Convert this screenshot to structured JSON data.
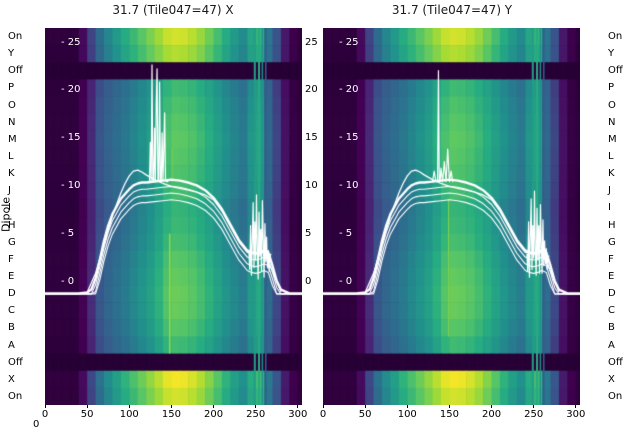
{
  "figure": {
    "background": "#ffffff",
    "ylabel": "Dipole",
    "corner_zero_label": "0"
  },
  "axes": {
    "dipole_labels": [
      "On",
      "Y",
      "Off",
      "P",
      "O",
      "N",
      "M",
      "L",
      "K",
      "J",
      "I",
      "H",
      "G",
      "F",
      "E",
      "D",
      "C",
      "B",
      "A",
      "Off",
      "X",
      "On"
    ],
    "inner_tick_labels": [
      "- 25",
      "- 20",
      "- 15",
      "- 10",
      "- 5",
      "- 0"
    ],
    "inner_tick_values": [
      25,
      20,
      15,
      10,
      5,
      0
    ],
    "gap_tick_labels": [
      "25",
      "20",
      "15",
      "10",
      "5",
      "0"
    ],
    "x_tick_labels": [
      "0",
      "50",
      "100",
      "150",
      "200",
      "250",
      "300"
    ],
    "x_tick_values": [
      0,
      50,
      100,
      150,
      200,
      250,
      300
    ],
    "x_range": [
      0,
      305
    ]
  },
  "style": {
    "overlay_color": "#ffffff",
    "title_color": "#1a1a1a",
    "tick_color": "#000000",
    "colormap": "viridis"
  },
  "chart_data": [
    {
      "type": "heatmap",
      "title": "31.7 (Tile047=47) X",
      "x_range": [
        0,
        305
      ],
      "row_labels": [
        "On",
        "Y",
        "Off",
        "P",
        "O",
        "N",
        "M",
        "L",
        "K",
        "J",
        "I",
        "H",
        "G",
        "F",
        "E",
        "D",
        "C",
        "B",
        "A",
        "Off",
        "X",
        "On"
      ],
      "row_kinds": [
        "band",
        "band",
        "off",
        "main",
        "main",
        "main",
        "main",
        "main",
        "main",
        "main",
        "main",
        "main",
        "main",
        "main",
        "main",
        "main",
        "main",
        "main",
        "main",
        "off",
        "band",
        "band"
      ],
      "row_gains": [
        1.0,
        0.95,
        1.0,
        0.93,
        0.97,
        1.0,
        1.02,
        1.0,
        0.98,
        0.95,
        0.9,
        0.92,
        0.95,
        1.0,
        1.03,
        1.05,
        1.04,
        1.0,
        0.93,
        1.0,
        1.05,
        1.0
      ],
      "column_step": 10,
      "profiles": {
        "main": [
          0.03,
          0.03,
          0.03,
          0.03,
          0.06,
          0.16,
          0.26,
          0.32,
          0.36,
          0.4,
          0.45,
          0.5,
          0.55,
          0.62,
          0.7,
          0.74,
          0.73,
          0.71,
          0.67,
          0.62,
          0.56,
          0.5,
          0.45,
          0.41,
          0.52,
          0.58,
          0.34,
          0.22,
          0.1,
          0.04,
          0.03
        ],
        "band": [
          0.03,
          0.03,
          0.03,
          0.03,
          0.08,
          0.22,
          0.36,
          0.46,
          0.54,
          0.62,
          0.68,
          0.74,
          0.8,
          0.86,
          0.92,
          0.94,
          0.93,
          0.9,
          0.85,
          0.78,
          0.7,
          0.62,
          0.54,
          0.48,
          0.6,
          0.66,
          0.4,
          0.26,
          0.12,
          0.05,
          0.03
        ],
        "off_value": 0.02
      },
      "vertical_lines": [
        {
          "x": 249,
          "v": 0.56,
          "w": 2
        },
        {
          "x": 254,
          "v": 0.62,
          "w": 2
        },
        {
          "x": 258,
          "v": 0.5,
          "w": 1.5
        },
        {
          "x": 262,
          "v": 0.3,
          "w": 1.5
        },
        {
          "x": 148,
          "v": 0.85,
          "w": 1.5,
          "rows": [
            12,
            19
          ]
        },
        {
          "x": 151,
          "v": 0.78,
          "w": 1.2,
          "rows": [
            7,
            9
          ]
        }
      ],
      "overlays": {
        "envelope": {
          "x": [
            0,
            10,
            20,
            30,
            40,
            50,
            55,
            60,
            65,
            70,
            75,
            80,
            90,
            100,
            105,
            110,
            115,
            120,
            130,
            140,
            150,
            160,
            170,
            180,
            190,
            200,
            210,
            220,
            230,
            240,
            245,
            250,
            255,
            260,
            265,
            270,
            275,
            280,
            290,
            300,
            305
          ],
          "y": [
            -1.3,
            -1.3,
            -1.3,
            -1.3,
            -1.3,
            -1.2,
            -0.9,
            0.3,
            2.2,
            4.2,
            5.8,
            7.0,
            8.6,
            9.6,
            10.0,
            10.2,
            10.3,
            10.3,
            10.4,
            10.5,
            10.6,
            10.5,
            10.3,
            10.0,
            9.5,
            8.7,
            7.5,
            5.9,
            4.3,
            3.2,
            3.0,
            2.9,
            3.0,
            3.2,
            3.0,
            1.6,
            0.0,
            -0.9,
            -1.3,
            -1.3,
            -1.3
          ]
        },
        "band_offsets": [
          0.7,
          1.4,
          2.1
        ],
        "hump": {
          "x": [
            50,
            60,
            70,
            80,
            90,
            95,
            100,
            105,
            110,
            115,
            120,
            130,
            140,
            150,
            160,
            170,
            180,
            190,
            200,
            210,
            220,
            230,
            240,
            250,
            260,
            270,
            280
          ],
          "y": [
            -1.2,
            0.8,
            3.8,
            6.8,
            9.2,
            10.2,
            11.0,
            11.5,
            11.6,
            11.4,
            11.1,
            10.6,
            10.2,
            9.9,
            9.7,
            9.5,
            9.3,
            9.0,
            8.5,
            7.3,
            5.7,
            4.1,
            3.0,
            2.8,
            3.0,
            1.0,
            -1.1
          ]
        },
        "spikes": {
          "x": [
            122,
            124,
            125,
            126,
            127,
            128,
            129,
            130,
            131,
            132,
            133,
            134,
            135,
            136,
            137,
            138,
            139,
            140,
            141,
            142,
            143,
            144,
            146
          ],
          "y": [
            10.3,
            10.3,
            14.5,
            10.4,
            22.6,
            10.4,
            10.4,
            16.0,
            10.4,
            18.5,
            22.2,
            10.5,
            10.4,
            20.8,
            10.5,
            10.4,
            15.5,
            10.4,
            13.8,
            17.6,
            10.6,
            10.4,
            10.4
          ]
        },
        "burst": {
          "x": [
            242,
            243,
            244,
            245,
            246,
            247,
            248,
            249,
            250,
            251,
            252,
            253,
            254,
            255,
            256,
            257,
            258,
            259,
            260,
            261,
            262,
            263,
            264,
            265,
            266,
            267,
            268
          ],
          "y": [
            3.0,
            1.2,
            5.8,
            0.6,
            4.2,
            8.2,
            1.4,
            6.2,
            2.2,
            9.0,
            3.4,
            0.2,
            7.2,
            2.6,
            5.4,
            1.0,
            8.4,
            4.2,
            0.4,
            6.0,
            2.0,
            4.6,
            1.4,
            3.2,
            1.0,
            2.6,
            2.8
          ]
        }
      }
    },
    {
      "type": "heatmap",
      "title": "31.7 (Tile047=47) Y",
      "x_range": [
        0,
        305
      ],
      "row_labels": [
        "On",
        "Y",
        "Off",
        "P",
        "O",
        "N",
        "M",
        "L",
        "K",
        "J",
        "I",
        "H",
        "G",
        "F",
        "E",
        "D",
        "C",
        "B",
        "A",
        "Off",
        "X",
        "On"
      ],
      "row_kinds": [
        "band",
        "band",
        "off",
        "main",
        "main",
        "main",
        "main",
        "main",
        "main",
        "main",
        "main",
        "main",
        "main",
        "main",
        "main",
        "main",
        "main",
        "main",
        "main",
        "off",
        "band",
        "band"
      ],
      "row_gains": [
        1.0,
        0.95,
        1.0,
        0.93,
        0.97,
        1.0,
        1.02,
        1.0,
        0.98,
        0.95,
        0.9,
        0.92,
        0.95,
        1.0,
        1.03,
        1.05,
        1.04,
        1.0,
        0.93,
        1.0,
        1.05,
        1.0
      ],
      "column_step": 10,
      "profiles": {
        "main": [
          0.03,
          0.03,
          0.03,
          0.03,
          0.06,
          0.16,
          0.26,
          0.32,
          0.36,
          0.4,
          0.45,
          0.5,
          0.55,
          0.62,
          0.7,
          0.74,
          0.73,
          0.71,
          0.67,
          0.62,
          0.56,
          0.5,
          0.45,
          0.41,
          0.52,
          0.58,
          0.34,
          0.22,
          0.1,
          0.04,
          0.03
        ],
        "band": [
          0.03,
          0.03,
          0.03,
          0.03,
          0.08,
          0.22,
          0.36,
          0.46,
          0.54,
          0.62,
          0.68,
          0.74,
          0.8,
          0.86,
          0.92,
          0.94,
          0.93,
          0.9,
          0.85,
          0.78,
          0.7,
          0.62,
          0.54,
          0.48,
          0.6,
          0.66,
          0.4,
          0.26,
          0.12,
          0.05,
          0.03
        ],
        "off_value": 0.02
      },
      "vertical_lines": [
        {
          "x": 249,
          "v": 0.56,
          "w": 2
        },
        {
          "x": 254,
          "v": 0.62,
          "w": 2
        },
        {
          "x": 258,
          "v": 0.5,
          "w": 1.5
        },
        {
          "x": 262,
          "v": 0.3,
          "w": 1.5
        },
        {
          "x": 149,
          "v": 0.8,
          "w": 1.2,
          "rows": [
            10,
            18
          ]
        }
      ],
      "overlays": {
        "envelope": {
          "x": [
            0,
            10,
            20,
            30,
            40,
            50,
            55,
            60,
            65,
            70,
            75,
            80,
            90,
            100,
            105,
            110,
            115,
            120,
            130,
            140,
            150,
            160,
            170,
            180,
            190,
            200,
            210,
            220,
            230,
            240,
            245,
            250,
            255,
            260,
            265,
            270,
            275,
            280,
            290,
            300,
            305
          ],
          "y": [
            -1.3,
            -1.3,
            -1.3,
            -1.3,
            -1.3,
            -1.2,
            -0.9,
            0.3,
            2.2,
            4.2,
            5.8,
            7.0,
            8.6,
            9.6,
            10.0,
            10.2,
            10.3,
            10.3,
            10.4,
            10.5,
            10.6,
            10.5,
            10.3,
            10.0,
            9.5,
            8.7,
            7.5,
            5.9,
            4.3,
            3.2,
            3.0,
            2.9,
            3.0,
            3.2,
            3.0,
            1.6,
            0.0,
            -0.9,
            -1.3,
            -1.3,
            -1.3
          ]
        },
        "band_offsets": [
          0.7,
          1.4,
          2.1
        ],
        "hump": {
          "x": [
            50,
            60,
            70,
            80,
            90,
            95,
            100,
            105,
            110,
            115,
            120,
            130,
            140,
            150,
            160,
            170,
            180,
            190,
            200,
            210,
            220,
            230,
            240,
            250,
            260,
            270,
            280
          ],
          "y": [
            -1.2,
            0.8,
            3.8,
            6.8,
            9.2,
            10.2,
            11.0,
            11.5,
            11.6,
            11.4,
            11.1,
            10.6,
            10.2,
            9.9,
            9.7,
            9.5,
            9.3,
            9.0,
            8.5,
            7.3,
            5.7,
            4.1,
            3.0,
            2.8,
            3.0,
            1.0,
            -1.1
          ]
        },
        "spikes": {
          "x": [
            128,
            130,
            132,
            134,
            136,
            137,
            138,
            139,
            140,
            142,
            144,
            146,
            148,
            150,
            152,
            154
          ],
          "y": [
            10.4,
            10.4,
            11.5,
            10.4,
            10.6,
            22.0,
            10.6,
            10.4,
            11.8,
            10.4,
            12.5,
            10.4,
            13.8,
            10.4,
            11.5,
            10.4
          ]
        },
        "burst": {
          "x": [
            242,
            243,
            244,
            245,
            246,
            247,
            248,
            249,
            250,
            251,
            252,
            253,
            254,
            255,
            256,
            257,
            258,
            259,
            260,
            261,
            262,
            263,
            264,
            265,
            266,
            267,
            268
          ],
          "y": [
            2.8,
            1.0,
            6.2,
            0.4,
            4.6,
            8.6,
            1.2,
            5.8,
            2.4,
            9.4,
            3.0,
            0.6,
            7.6,
            2.2,
            5.8,
            0.8,
            8.0,
            3.8,
            0.8,
            6.4,
            1.6,
            4.2,
            1.8,
            3.4,
            1.2,
            2.4,
            2.6
          ]
        }
      }
    }
  ]
}
